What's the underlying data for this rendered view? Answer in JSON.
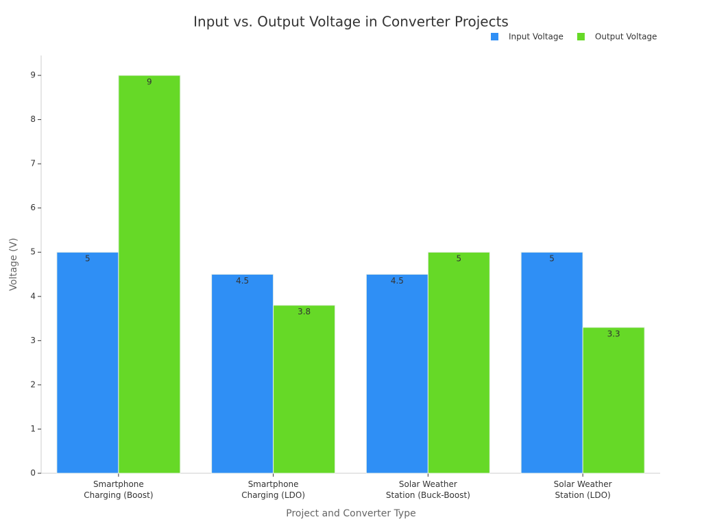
{
  "chart_data": {
    "type": "bar",
    "title": "Input vs. Output Voltage in Converter Projects",
    "x_label": "Project and Converter Type",
    "y_label": "Voltage (V)",
    "categories": [
      "Smartphone\nCharging (Boost)",
      "Smartphone\nCharging (LDO)",
      "Solar Weather\nStation (Buck-Boost)",
      "Solar Weather\nStation (LDO)"
    ],
    "series": [
      {
        "name": "Input Voltage",
        "color": "#2f8ff5",
        "values": [
          5,
          4.5,
          4.5,
          5
        ]
      },
      {
        "name": "Output Voltage",
        "color": "#66d927",
        "values": [
          9,
          3.8,
          5,
          3.3
        ]
      }
    ],
    "ylim": [
      0,
      9.45
    ],
    "yticks": [
      0,
      1,
      2,
      3,
      4,
      5,
      6,
      7,
      8,
      9
    ],
    "legend": "top-right"
  }
}
